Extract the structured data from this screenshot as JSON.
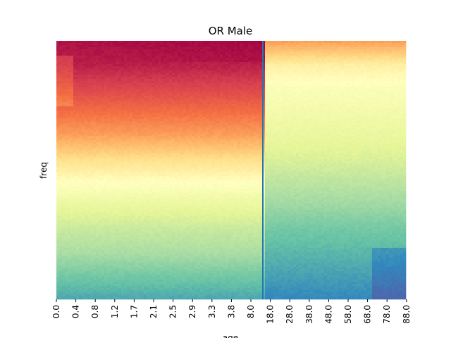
{
  "chart_data": {
    "type": "heatmap",
    "title": "OR Male",
    "xlabel": "age",
    "ylabel": "freq",
    "colormap": "Spectral_r",
    "x_tick_labels": [
      "0.0",
      "0.4",
      "0.8",
      "1.2",
      "1.7",
      "2.1",
      "2.5",
      "2.9",
      "3.3",
      "3.8",
      "8.0",
      "18.0",
      "28.0",
      "38.0",
      "48.0",
      "58.0",
      "68.0",
      "78.0",
      "88.0"
    ],
    "y_tick_labels": [],
    "divider_line": {
      "after_tick": "8.0",
      "color": "#1f77b4"
    },
    "grid": false,
    "legend": "none",
    "intensity_profile": {
      "left_region": {
        "description_levels_top_to_bottom": [
          0.97,
          0.95,
          0.88,
          0.8,
          0.72,
          0.6,
          0.5,
          0.42,
          0.35,
          0.3,
          0.22,
          0.15
        ]
      },
      "right_region": {
        "description_levels_top_to_bottom": [
          0.72,
          0.55,
          0.48,
          0.45,
          0.42,
          0.38,
          0.33,
          0.28,
          0.22,
          0.18,
          0.14,
          0.1
        ]
      }
    }
  }
}
